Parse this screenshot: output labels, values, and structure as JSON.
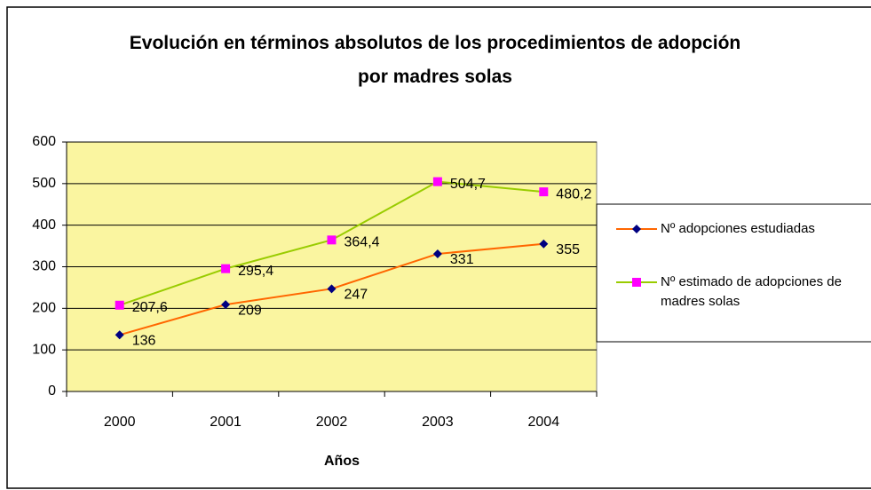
{
  "chart_data": {
    "type": "line",
    "title": "Evolución en términos absolutos de los procedimientos de adopción por madres solas",
    "x_label": "Años",
    "categories": [
      "2000",
      "2001",
      "2002",
      "2003",
      "2004"
    ],
    "series": [
      {
        "name": "Nº adopciones estudiadas",
        "color": "#ff6600",
        "marker_color": "#000080",
        "marker": "diamond",
        "values": [
          136,
          209,
          247,
          331,
          355
        ]
      },
      {
        "name": "Nº estimado de adopciones de madres solas",
        "color": "#99cc00",
        "marker_color": "#ff00ff",
        "marker": "square",
        "values": [
          207.6,
          295.4,
          364.4,
          504.7,
          480.2
        ],
        "value_labels": [
          "207,6",
          "295,4",
          "364,4",
          "504,7",
          "480,2"
        ]
      }
    ],
    "ylim": [
      0,
      600
    ],
    "yticks": [
      0,
      100,
      200,
      300,
      400,
      500,
      600
    ],
    "grid": true,
    "plot_background": "#faf5a0",
    "legend": "right"
  }
}
